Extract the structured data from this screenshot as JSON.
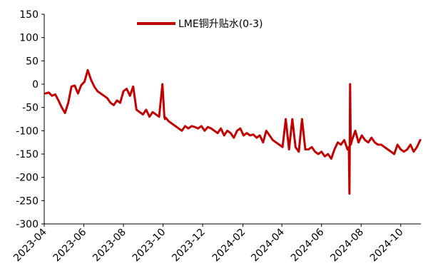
{
  "chart_data": {
    "type": "line",
    "title": "",
    "xlabel": "",
    "ylabel": "",
    "ylim": [
      -300,
      150
    ],
    "yticks": [
      150,
      100,
      50,
      0,
      -50,
      -100,
      -150,
      -200,
      -250,
      -300
    ],
    "xlim": [
      "2023-04-01",
      "2024-11-01"
    ],
    "xticks": [
      "2023-04",
      "2023-06",
      "2023-08",
      "2023-10",
      "2023-12",
      "2024-02",
      "2024-04",
      "2024-06",
      "2024-08",
      "2024-10"
    ],
    "grid": false,
    "legend": {
      "position": "top-center"
    },
    "series": [
      {
        "name": "LME铜升贴水(0-3)",
        "color": "#C00000",
        "x": [
          "2023-04-03",
          "2023-04-08",
          "2023-04-13",
          "2023-04-18",
          "2023-04-23",
          "2023-04-28",
          "2023-05-03",
          "2023-05-08",
          "2023-05-13",
          "2023-05-18",
          "2023-05-23",
          "2023-05-28",
          "2023-06-02",
          "2023-06-07",
          "2023-06-12",
          "2023-06-17",
          "2023-06-22",
          "2023-06-27",
          "2023-07-02",
          "2023-07-07",
          "2023-07-12",
          "2023-07-17",
          "2023-07-22",
          "2023-07-27",
          "2023-08-01",
          "2023-08-06",
          "2023-08-11",
          "2023-08-16",
          "2023-08-21",
          "2023-08-26",
          "2023-08-31",
          "2023-09-05",
          "2023-09-10",
          "2023-09-15",
          "2023-09-20",
          "2023-09-25",
          "2023-09-30",
          "2023-10-03",
          "2023-10-04",
          "2023-10-05",
          "2023-10-10",
          "2023-10-15",
          "2023-10-20",
          "2023-10-25",
          "2023-10-30",
          "2023-11-04",
          "2023-11-09",
          "2023-11-14",
          "2023-11-19",
          "2023-11-24",
          "2023-11-29",
          "2023-12-04",
          "2023-12-09",
          "2023-12-14",
          "2023-12-19",
          "2023-12-24",
          "2023-12-29",
          "2024-01-03",
          "2024-01-08",
          "2024-01-13",
          "2024-01-18",
          "2024-01-23",
          "2024-01-28",
          "2024-02-02",
          "2024-02-07",
          "2024-02-12",
          "2024-02-17",
          "2024-02-22",
          "2024-02-27",
          "2024-03-03",
          "2024-03-08",
          "2024-03-13",
          "2024-03-18",
          "2024-03-23",
          "2024-03-28",
          "2024-04-02",
          "2024-04-07",
          "2024-04-12",
          "2024-04-17",
          "2024-04-22",
          "2024-04-27",
          "2024-05-02",
          "2024-05-07",
          "2024-05-12",
          "2024-05-17",
          "2024-05-22",
          "2024-05-27",
          "2024-06-01",
          "2024-06-06",
          "2024-06-11",
          "2024-06-16",
          "2024-06-21",
          "2024-06-26",
          "2024-07-01",
          "2024-07-06",
          "2024-07-11",
          "2024-07-13",
          "2024-07-14",
          "2024-07-15",
          "2024-07-16",
          "2024-07-17",
          "2024-07-18",
          "2024-07-23",
          "2024-07-28",
          "2024-08-02",
          "2024-08-07",
          "2024-08-12",
          "2024-08-17",
          "2024-08-22",
          "2024-08-27",
          "2024-09-01",
          "2024-09-06",
          "2024-09-11",
          "2024-09-16",
          "2024-09-21",
          "2024-09-26",
          "2024-10-01",
          "2024-10-06",
          "2024-10-11",
          "2024-10-16",
          "2024-10-21",
          "2024-10-26",
          "2024-10-31"
        ],
        "values": [
          -20,
          -18,
          -25,
          -22,
          -35,
          -50,
          -62,
          -40,
          -5,
          -3,
          -20,
          -2,
          5,
          30,
          10,
          -5,
          -15,
          -20,
          -25,
          -30,
          -40,
          -45,
          -35,
          -40,
          -15,
          -10,
          -25,
          -5,
          -55,
          -60,
          -65,
          -55,
          -70,
          -60,
          -65,
          -70,
          0,
          -70,
          -75,
          -72,
          -80,
          -85,
          -90,
          -95,
          -100,
          -90,
          -95,
          -90,
          -92,
          -95,
          -90,
          -100,
          -92,
          -95,
          -100,
          -105,
          -95,
          -110,
          -100,
          -105,
          -115,
          -100,
          -95,
          -110,
          -105,
          -110,
          -108,
          -115,
          -110,
          -125,
          -100,
          -110,
          -120,
          -125,
          -130,
          -135,
          -75,
          -140,
          -75,
          -135,
          -145,
          -75,
          -140,
          -140,
          -135,
          -145,
          -150,
          -145,
          -155,
          -150,
          -160,
          -140,
          -125,
          -130,
          -120,
          -140,
          -135,
          -235,
          0,
          -130,
          -125,
          -120,
          -100,
          -125,
          -110,
          -120,
          -125,
          -115,
          -125,
          -130,
          -130,
          -135,
          -140,
          -145,
          -150,
          -130,
          -140,
          -145,
          -140,
          -130,
          -145,
          -135,
          -120
        ]
      }
    ]
  }
}
